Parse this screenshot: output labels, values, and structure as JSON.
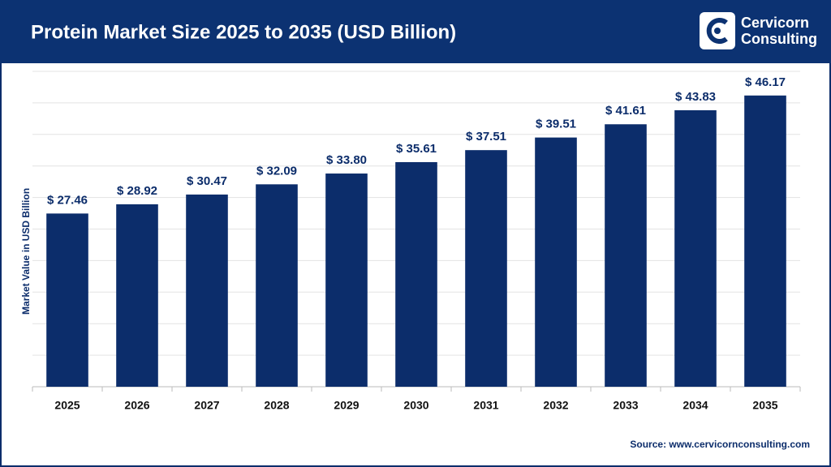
{
  "chart_data": {
    "type": "bar",
    "title": "Protein Market Size 2025 to 2035 (USD Billion)",
    "y_label": "Market Value in USD Billion",
    "source": "Source: www.cervicornconsulting.com",
    "categories": [
      "2025",
      "2026",
      "2027",
      "2028",
      "2029",
      "2030",
      "2031",
      "2032",
      "2033",
      "2034",
      "2035"
    ],
    "values": [
      27.46,
      28.92,
      30.47,
      32.09,
      33.8,
      35.61,
      37.51,
      39.51,
      41.61,
      43.83,
      46.17
    ],
    "value_labels": [
      "$ 27.46",
      "$ 28.92",
      "$ 30.47",
      "$ 32.09",
      "$ 33.80",
      "$ 35.61",
      "$ 37.51",
      "$ 39.51",
      "$ 41.61",
      "$ 43.83",
      "$ 46.17"
    ],
    "color": "#0c2d6b",
    "ylim": [
      0,
      50
    ],
    "yticks": [
      0,
      5,
      10,
      15,
      20,
      25,
      30,
      35,
      40,
      45,
      50
    ],
    "grid": true
  },
  "brand": {
    "line1": "Cervicorn",
    "line2": "Consulting"
  }
}
